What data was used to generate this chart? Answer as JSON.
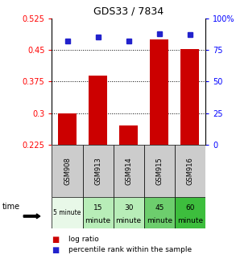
{
  "title": "GDS33 / 7834",
  "samples": [
    "GSM908",
    "GSM913",
    "GSM914",
    "GSM915",
    "GSM916"
  ],
  "time_labels_line1": [
    "5 minute",
    "15",
    "30",
    "45",
    "60"
  ],
  "time_labels_line2": [
    "",
    "minute",
    "minute",
    "minute",
    "minute"
  ],
  "time_colors": [
    "#e8f8e8",
    "#b8edb8",
    "#b8edb8",
    "#6dce6d",
    "#3dbe3d"
  ],
  "log_ratio": [
    0.3,
    0.39,
    0.27,
    0.475,
    0.452
  ],
  "percentile_rank": [
    82,
    85,
    82,
    88,
    87
  ],
  "ylim_left": [
    0.225,
    0.525
  ],
  "ylim_right": [
    0,
    100
  ],
  "yticks_left": [
    0.225,
    0.3,
    0.375,
    0.45,
    0.525
  ],
  "yticks_right": [
    0,
    25,
    50,
    75,
    100
  ],
  "bar_color": "#cc0000",
  "marker_color": "#2222cc",
  "bar_bottom": 0.225,
  "legend_bar": "log ratio",
  "legend_marker": "percentile rank within the sample",
  "sample_bg": "#cccccc",
  "grid_color": "#555555"
}
